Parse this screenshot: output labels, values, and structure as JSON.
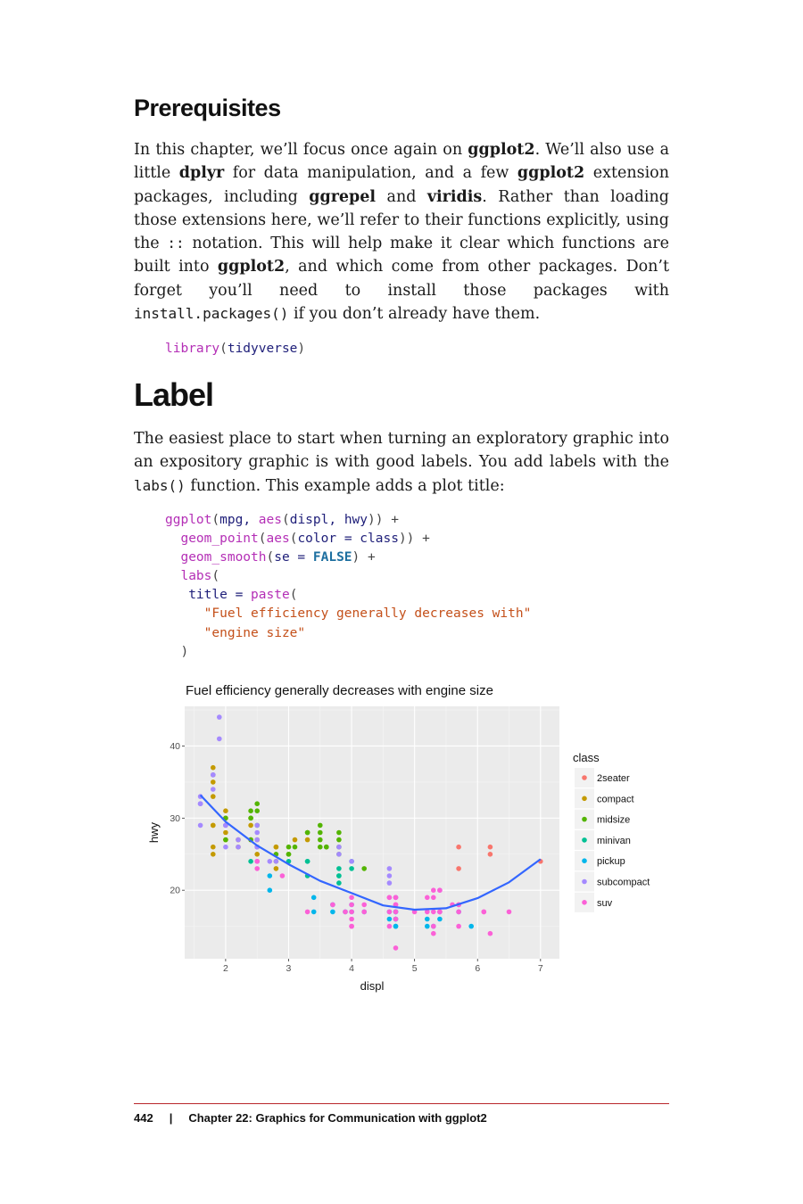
{
  "section": {
    "prereq_heading": "Prerequisites",
    "prereq_para": {
      "t1": "In this chapter, we’ll focus once again on ",
      "b1": "ggplot2",
      "t2": ". We’ll also use a little ",
      "b2": "dplyr",
      "t3": " for data manipulation, and a few ",
      "b3": "ggplot2",
      "t4": " extension packages, including ",
      "b4": "ggrepel",
      "t5": " and ",
      "b5": "viridis",
      "t6": ". Rather than loading those extensions here, we’ll refer to their functions explicitly, using the ",
      "c1": "::",
      "t7": " notation. This will help make it clear which functions are built into ",
      "b6": "ggplot2",
      "t8": ", and which come from other packages. Don’t forget you’ll need to install those packages with ",
      "c2": "install.packages()",
      "t9": " if you don’t already have them."
    },
    "code1": {
      "fn": "library",
      "arg": "tidyverse"
    },
    "label_heading": "Label",
    "label_para": {
      "t1": "The easiest place to start when turning an exploratory graphic into an expository graphic is with good labels. You add labels with the ",
      "c1": "labs()",
      "t2": " function. This example adds a plot title:"
    },
    "code2": {
      "l1_fn1": "ggplot",
      "l1_a1": "mpg, ",
      "l1_fn2": "aes",
      "l1_a2": "displ, hwy",
      "l2_fn1": "geom_point",
      "l2_fn2": "aes",
      "l2_a": "color = class",
      "l3_fn": "geom_smooth",
      "l3_a": "se = ",
      "l3_kw": "FALSE",
      "l4_fn": "labs",
      "l5_a": "title = ",
      "l5_fn": "paste",
      "l6_str": "\"Fuel efficiency generally decreases with\"",
      "l7_str": "\"engine size\""
    }
  },
  "footer": {
    "page_number": "442",
    "separator": "|",
    "chapter": "Chapter 22: Graphics for Communication with ggplot2"
  },
  "chart_data": {
    "type": "scatter",
    "title": "Fuel efficiency generally decreases with engine size",
    "xlabel": "displ",
    "ylabel": "hwy",
    "xlim": [
      1.35,
      7.3
    ],
    "ylim": [
      10.5,
      45.5
    ],
    "xticks": [
      2,
      3,
      4,
      5,
      6,
      7
    ],
    "yticks": [
      20,
      30,
      40
    ],
    "grid": true,
    "legend": {
      "title": "class",
      "placement": "right"
    },
    "series": [
      {
        "name": "2seater",
        "color": "#F8766D",
        "points": [
          [
            5.7,
            26
          ],
          [
            5.7,
            23
          ],
          [
            6.2,
            26
          ],
          [
            6.2,
            25
          ],
          [
            7.0,
            24
          ]
        ]
      },
      {
        "name": "compact",
        "color": "#C49A00",
        "points": [
          [
            1.8,
            29
          ],
          [
            1.8,
            29
          ],
          [
            2.0,
            31
          ],
          [
            2.0,
            30
          ],
          [
            2.8,
            26
          ],
          [
            2.8,
            26
          ],
          [
            3.1,
            27
          ],
          [
            1.8,
            26
          ],
          [
            1.8,
            25
          ],
          [
            2.0,
            28
          ],
          [
            2.0,
            27
          ],
          [
            2.4,
            29
          ],
          [
            2.4,
            27
          ],
          [
            2.5,
            27
          ],
          [
            2.5,
            25
          ],
          [
            2.5,
            26
          ],
          [
            2.2,
            26
          ],
          [
            2.2,
            27
          ],
          [
            1.8,
            36
          ],
          [
            1.8,
            33
          ],
          [
            1.8,
            37
          ],
          [
            1.8,
            35
          ],
          [
            2.0,
            29
          ],
          [
            2.8,
            23
          ],
          [
            2.8,
            24
          ],
          [
            3.3,
            27
          ]
        ]
      },
      {
        "name": "midsize",
        "color": "#53B400",
        "points": [
          [
            2.4,
            27
          ],
          [
            2.4,
            30
          ],
          [
            3.1,
            26
          ],
          [
            3.5,
            29
          ],
          [
            3.6,
            26
          ],
          [
            3.6,
            26
          ],
          [
            2.4,
            31
          ],
          [
            2.4,
            30
          ],
          [
            3.5,
            26
          ],
          [
            3.3,
            28
          ],
          [
            2.5,
            32
          ],
          [
            2.5,
            31
          ],
          [
            2.5,
            29
          ],
          [
            3.5,
            28
          ],
          [
            3.5,
            27
          ],
          [
            3.8,
            25
          ],
          [
            3.8,
            27
          ],
          [
            3.8,
            28
          ],
          [
            3.8,
            26
          ],
          [
            4.2,
            23
          ],
          [
            2.0,
            27
          ],
          [
            2.0,
            30
          ],
          [
            3.0,
            26
          ],
          [
            3.0,
            25
          ],
          [
            3.3,
            28
          ],
          [
            2.8,
            25
          ],
          [
            3.0,
            25
          ]
        ]
      },
      {
        "name": "minivan",
        "color": "#00C094",
        "points": [
          [
            2.4,
            24
          ],
          [
            3.0,
            24
          ],
          [
            3.3,
            22
          ],
          [
            3.3,
            24
          ],
          [
            3.8,
            21
          ],
          [
            3.8,
            23
          ],
          [
            3.8,
            22
          ],
          [
            4.0,
            23
          ],
          [
            4.0,
            24
          ],
          [
            3.3,
            24
          ],
          [
            3.8,
            22
          ]
        ]
      },
      {
        "name": "pickup",
        "color": "#00B6EB",
        "points": [
          [
            2.7,
            20
          ],
          [
            2.7,
            22
          ],
          [
            3.7,
            17
          ],
          [
            3.9,
            17
          ],
          [
            4.7,
            17
          ],
          [
            4.7,
            15
          ],
          [
            4.7,
            16
          ],
          [
            5.2,
            15
          ],
          [
            5.2,
            16
          ],
          [
            5.7,
            17
          ],
          [
            5.9,
            15
          ],
          [
            4.7,
            17
          ],
          [
            4.7,
            16
          ],
          [
            5.3,
            15
          ],
          [
            5.4,
            16
          ],
          [
            3.4,
            19
          ],
          [
            4.0,
            17
          ],
          [
            4.2,
            17
          ],
          [
            4.6,
            16
          ],
          [
            5.4,
            17
          ],
          [
            4.7,
            19
          ],
          [
            3.4,
            17
          ],
          [
            3.7,
            18
          ],
          [
            4.0,
            18
          ],
          [
            4.7,
            15
          ],
          [
            4.6,
            17
          ]
        ]
      },
      {
        "name": "subcompact",
        "color": "#A58AFF",
        "points": [
          [
            1.6,
            33
          ],
          [
            1.6,
            32
          ],
          [
            1.6,
            32
          ],
          [
            1.6,
            29
          ],
          [
            1.6,
            32
          ],
          [
            1.8,
            34
          ],
          [
            1.8,
            36
          ],
          [
            1.8,
            36
          ],
          [
            1.9,
            44
          ],
          [
            1.9,
            41
          ],
          [
            2.0,
            29
          ],
          [
            2.0,
            26
          ],
          [
            2.0,
            29
          ],
          [
            2.0,
            29
          ],
          [
            2.5,
            26
          ],
          [
            2.5,
            26
          ],
          [
            2.5,
            28
          ],
          [
            2.5,
            29
          ],
          [
            2.2,
            26
          ],
          [
            2.2,
            27
          ],
          [
            2.5,
            24
          ],
          [
            2.5,
            24
          ],
          [
            3.8,
            26
          ],
          [
            3.8,
            25
          ],
          [
            4.0,
            24
          ],
          [
            4.6,
            23
          ],
          [
            4.6,
            22
          ],
          [
            4.6,
            21
          ],
          [
            5.4,
            20
          ],
          [
            2.5,
            27
          ],
          [
            2.7,
            24
          ],
          [
            2.8,
            24
          ]
        ]
      },
      {
        "name": "suv",
        "color": "#FB61D7",
        "points": [
          [
            5.3,
            15
          ],
          [
            5.3,
            14
          ],
          [
            5.7,
            15
          ],
          [
            6.5,
            17
          ],
          [
            4.7,
            12
          ],
          [
            4.7,
            16
          ],
          [
            4.0,
            17
          ],
          [
            4.0,
            15
          ],
          [
            4.6,
            17
          ],
          [
            5.0,
            17
          ],
          [
            5.4,
            17
          ],
          [
            5.4,
            20
          ],
          [
            6.1,
            17
          ],
          [
            4.2,
            18
          ],
          [
            4.2,
            17
          ],
          [
            4.6,
            19
          ],
          [
            4.6,
            15
          ],
          [
            4.7,
            19
          ],
          [
            5.2,
            17
          ],
          [
            5.2,
            19
          ],
          [
            5.7,
            18
          ],
          [
            6.1,
            17
          ],
          [
            4.0,
            19
          ],
          [
            4.0,
            18
          ],
          [
            4.7,
            17
          ],
          [
            4.7,
            18
          ],
          [
            5.3,
            20
          ],
          [
            5.3,
            17
          ],
          [
            5.7,
            17
          ],
          [
            3.7,
            18
          ],
          [
            3.9,
            17
          ],
          [
            5.3,
            19
          ],
          [
            5.6,
            18
          ],
          [
            5.7,
            18
          ],
          [
            2.5,
            23
          ],
          [
            2.5,
            24
          ],
          [
            3.3,
            17
          ],
          [
            2.9,
            22
          ],
          [
            4.7,
            19
          ],
          [
            6.2,
            14
          ],
          [
            4.0,
            15
          ],
          [
            4.0,
            16
          ],
          [
            4.6,
            19
          ],
          [
            5.4,
            17
          ],
          [
            4.7,
            18
          ]
        ]
      }
    ],
    "smooth": {
      "color": "#3366FF",
      "x": [
        1.6,
        2.0,
        2.5,
        3.0,
        3.5,
        4.0,
        4.5,
        5.0,
        5.5,
        6.0,
        6.5,
        7.0
      ],
      "y": [
        33.2,
        29.5,
        26.2,
        23.6,
        21.3,
        19.6,
        17.9,
        17.3,
        17.5,
        18.9,
        21.1,
        24.3
      ]
    }
  }
}
